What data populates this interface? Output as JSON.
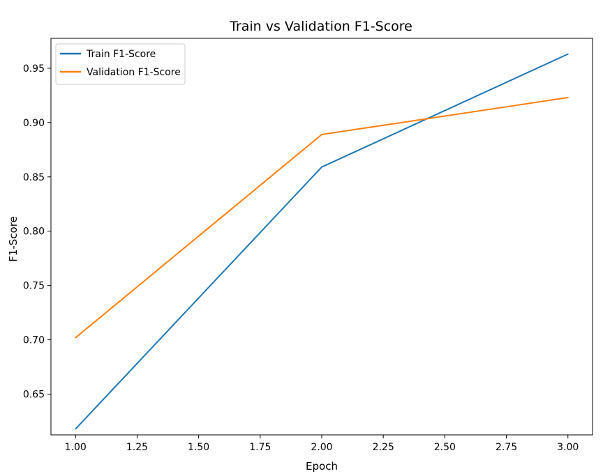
{
  "chart_data": {
    "type": "line",
    "title": "Train vs Validation F1-Score",
    "xlabel": "Epoch",
    "ylabel": "F1-Score",
    "x": [
      1.0,
      2.0,
      3.0
    ],
    "xlim": [
      0.9,
      3.1
    ],
    "ylim": [
      0.6125,
      0.9775
    ],
    "xticks": [
      "1.00",
      "1.25",
      "1.50",
      "1.75",
      "2.00",
      "2.25",
      "2.50",
      "2.75",
      "3.00"
    ],
    "yticks": [
      "0.65",
      "0.70",
      "0.75",
      "0.80",
      "0.85",
      "0.90",
      "0.95"
    ],
    "grid": false,
    "legend_position": "top-left",
    "series": [
      {
        "name": "Train F1-Score",
        "color": "#1f77b4",
        "values": [
          0.618,
          0.859,
          0.963
        ]
      },
      {
        "name": "Validation F1-Score",
        "color": "#ff7f0e",
        "values": [
          0.702,
          0.889,
          0.923
        ]
      }
    ]
  }
}
